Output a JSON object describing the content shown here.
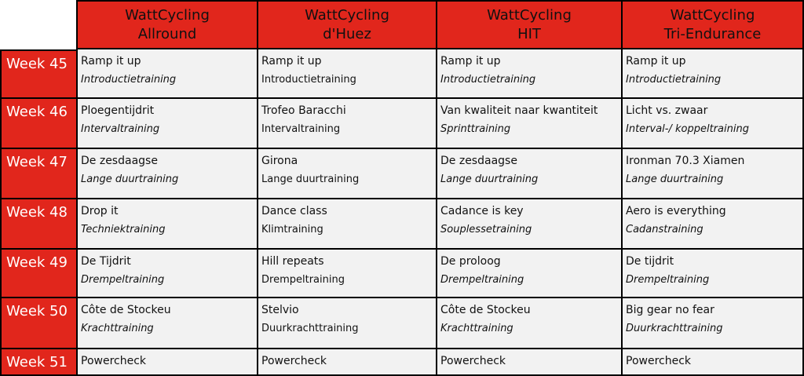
{
  "columns": [
    {
      "line1": "WattCycling",
      "line2": "Allround"
    },
    {
      "line1": "WattCycling",
      "line2": "d'Huez"
    },
    {
      "line1": "WattCycling",
      "line2": "HIT"
    },
    {
      "line1": "WattCycling",
      "line2": "Tri-Endurance"
    }
  ],
  "rows": [
    {
      "week": "Week 45",
      "cells": [
        {
          "title": "Ramp it up",
          "type": "Introductietraining",
          "italic": true
        },
        {
          "title": "Ramp it up",
          "type": "Introductietraining",
          "italic": false
        },
        {
          "title": "Ramp it up",
          "type": "Introductietraining",
          "italic": true
        },
        {
          "title": "Ramp it up",
          "type": "Introductietraining",
          "italic": true
        }
      ]
    },
    {
      "week": "Week 46",
      "cells": [
        {
          "title": "Ploegentijdrit",
          "type": "Intervaltraining",
          "italic": true
        },
        {
          "title": "Trofeo Baracchi",
          "type": "Intervaltraining",
          "italic": false
        },
        {
          "title": "Van kwaliteit naar kwantiteit",
          "type": "Sprinttraining",
          "italic": true
        },
        {
          "title": "Licht vs. zwaar",
          "type": "Interval-/ koppeltraining",
          "italic": true
        }
      ]
    },
    {
      "week": "Week 47",
      "cells": [
        {
          "title": "De zesdaagse",
          "type": "Lange duurtraining",
          "italic": true
        },
        {
          "title": "Girona",
          "type": "Lange duurtraining",
          "italic": false
        },
        {
          "title": "De zesdaagse",
          "type": "Lange duurtraining",
          "italic": true
        },
        {
          "title": "Ironman 70.3 Xiamen",
          "type": "Lange duurtraining",
          "italic": true
        }
      ]
    },
    {
      "week": "Week 48",
      "cells": [
        {
          "title": "Drop it",
          "type": "Techniektraining",
          "italic": true
        },
        {
          "title": "Dance class",
          "type": "Klimtraining",
          "italic": false
        },
        {
          "title": "Cadance is key",
          "type": "Souplessetraining",
          "italic": true
        },
        {
          "title": "Aero is everything",
          "type": "Cadanstraining",
          "italic": true
        }
      ]
    },
    {
      "week": "Week 49",
      "cells": [
        {
          "title": "De Tijdrit",
          "type": "Drempeltraining",
          "italic": true
        },
        {
          "title": "Hill repeats",
          "type": "Drempeltraining",
          "italic": false
        },
        {
          "title": "De proloog",
          "type": "Drempeltraining",
          "italic": true
        },
        {
          "title": "De tijdrit",
          "type": "Drempeltraining",
          "italic": true
        }
      ]
    },
    {
      "week": "Week 50",
      "cells": [
        {
          "title": "Côte de Stockeu",
          "type": "Krachttraining",
          "italic": true
        },
        {
          "title": "Stelvio",
          "type": "Duurkrachttraining",
          "italic": false
        },
        {
          "title": "Côte de Stockeu",
          "type": "Krachttraining",
          "italic": true
        },
        {
          "title": "Big gear no fear",
          "type": "Duurkrachttraining",
          "italic": true
        }
      ]
    },
    {
      "week": "Week 51",
      "cells": [
        {
          "title": "Powercheck",
          "type": "",
          "italic": false
        },
        {
          "title": "Powercheck",
          "type": "",
          "italic": false
        },
        {
          "title": "Powercheck",
          "type": "",
          "italic": false
        },
        {
          "title": "Powercheck",
          "type": "",
          "italic": false
        }
      ]
    }
  ],
  "colors": {
    "header_red": "#e1261c",
    "cell_gray": "#f2f2f2",
    "border": "#000000"
  }
}
